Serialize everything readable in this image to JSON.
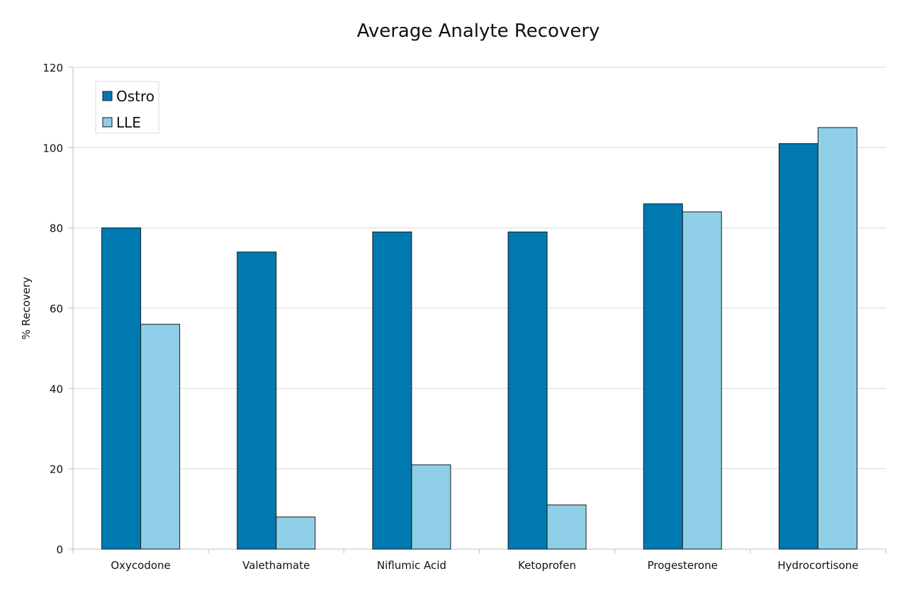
{
  "chart_data": {
    "type": "bar",
    "title": "Average Analyte Recovery",
    "xlabel": "",
    "ylabel": "% Recovery",
    "ylim": [
      0,
      120
    ],
    "yticks": [
      0,
      20,
      40,
      60,
      80,
      100,
      120
    ],
    "grid": true,
    "legend_position": "top-left",
    "categories": [
      "Oxycodone",
      "Valethamate",
      "Niflumic Acid",
      "Ketoprofen",
      "Progesterone",
      "Hydrocortisone"
    ],
    "series": [
      {
        "name": "Ostro",
        "color": "#0079b1",
        "values": [
          80,
          74,
          79,
          79,
          86,
          101
        ]
      },
      {
        "name": "LLE",
        "color": "#8ecfe7",
        "values": [
          56,
          8,
          21,
          11,
          84,
          105
        ]
      }
    ]
  }
}
